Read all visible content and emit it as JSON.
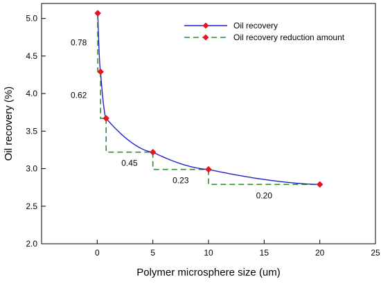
{
  "chart_data": {
    "type": "line",
    "title": "",
    "xlabel": "Polymer microsphere size (um)",
    "ylabel": "Oil recovery (%)",
    "xlim": [
      -5,
      25
    ],
    "ylim": [
      2.0,
      5.2
    ],
    "xticks": [
      "0",
      "5",
      "10",
      "15",
      "20",
      "25"
    ],
    "xtick_values": [
      0,
      5,
      10,
      15,
      20,
      25
    ],
    "yticks": [
      "2.0",
      "2.5",
      "3.0",
      "3.5",
      "4.0",
      "4.5",
      "5.0"
    ],
    "ytick_values": [
      2.0,
      2.5,
      3.0,
      3.5,
      4.0,
      4.5,
      5.0
    ],
    "grid": false,
    "legend_position": "top-right",
    "series": [
      {
        "name": "Oil recovery",
        "color": "#1f1fcc",
        "marker_color": "#e8141b",
        "line_style": "solid",
        "x": [
          0.05,
          0.3,
          0.8,
          5,
          10,
          20
        ],
        "y": [
          5.07,
          4.29,
          3.67,
          3.22,
          2.99,
          2.79
        ]
      },
      {
        "name": "Oil recovery reduction amount",
        "color": "#2e8b2e",
        "marker_color": "#e8141b",
        "line_style": "dashed",
        "steps": [
          {
            "x_from": 0.05,
            "x_to": 0.3,
            "y_from": 5.07,
            "y_to": 4.29,
            "label": "0.78"
          },
          {
            "x_from": 0.3,
            "x_to": 0.8,
            "y_from": 4.29,
            "y_to": 3.67,
            "label": "0.62"
          },
          {
            "x_from": 0.8,
            "x_to": 5,
            "y_from": 3.67,
            "y_to": 3.22,
            "label": "0.45"
          },
          {
            "x_from": 5,
            "x_to": 10,
            "y_from": 3.22,
            "y_to": 2.99,
            "label": "0.23"
          },
          {
            "x_from": 10,
            "x_to": 20,
            "y_from": 2.99,
            "y_to": 2.79,
            "label": "0.20"
          }
        ]
      }
    ]
  }
}
